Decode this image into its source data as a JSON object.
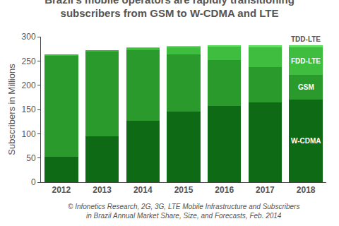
{
  "chart_data": {
    "type": "bar",
    "title": "Brazil's mobile operators are rapidly transitioning\nsubscribers from GSM to W-CDMA and LTE",
    "y_label": "Subscribers in Millions",
    "source": "© Infonetics Research, 2G, 3G, LTE Mobile Infrastructure and Subscribers\nin Brazil Annual Market Share, Size, and Forecasts, Feb. 2014",
    "categories": [
      "2012",
      "2013",
      "2014",
      "2015",
      "2016",
      "2017",
      "2018"
    ],
    "series": [
      {
        "name": "W-CDMA",
        "color": "#0e6a14",
        "values": [
          53,
          95,
          127,
          145,
          157,
          164,
          170
        ]
      },
      {
        "name": "GSM",
        "color": "#2b9a2d",
        "values": [
          209,
          175,
          146,
          118,
          95,
          73,
          52
        ]
      },
      {
        "name": "FDD-LTE",
        "color": "#3ebd3f",
        "values": [
          1,
          2,
          4,
          16,
          28,
          41,
          56
        ]
      },
      {
        "name": "TDD-LTE",
        "color": "#62e062",
        "values": [
          0,
          0,
          0.5,
          1,
          2,
          5,
          5
        ]
      }
    ],
    "stacked": true,
    "ylim": [
      0,
      300
    ],
    "yticks": [
      0,
      50,
      100,
      150,
      200,
      250,
      300
    ],
    "grid": false,
    "legend": "right"
  }
}
